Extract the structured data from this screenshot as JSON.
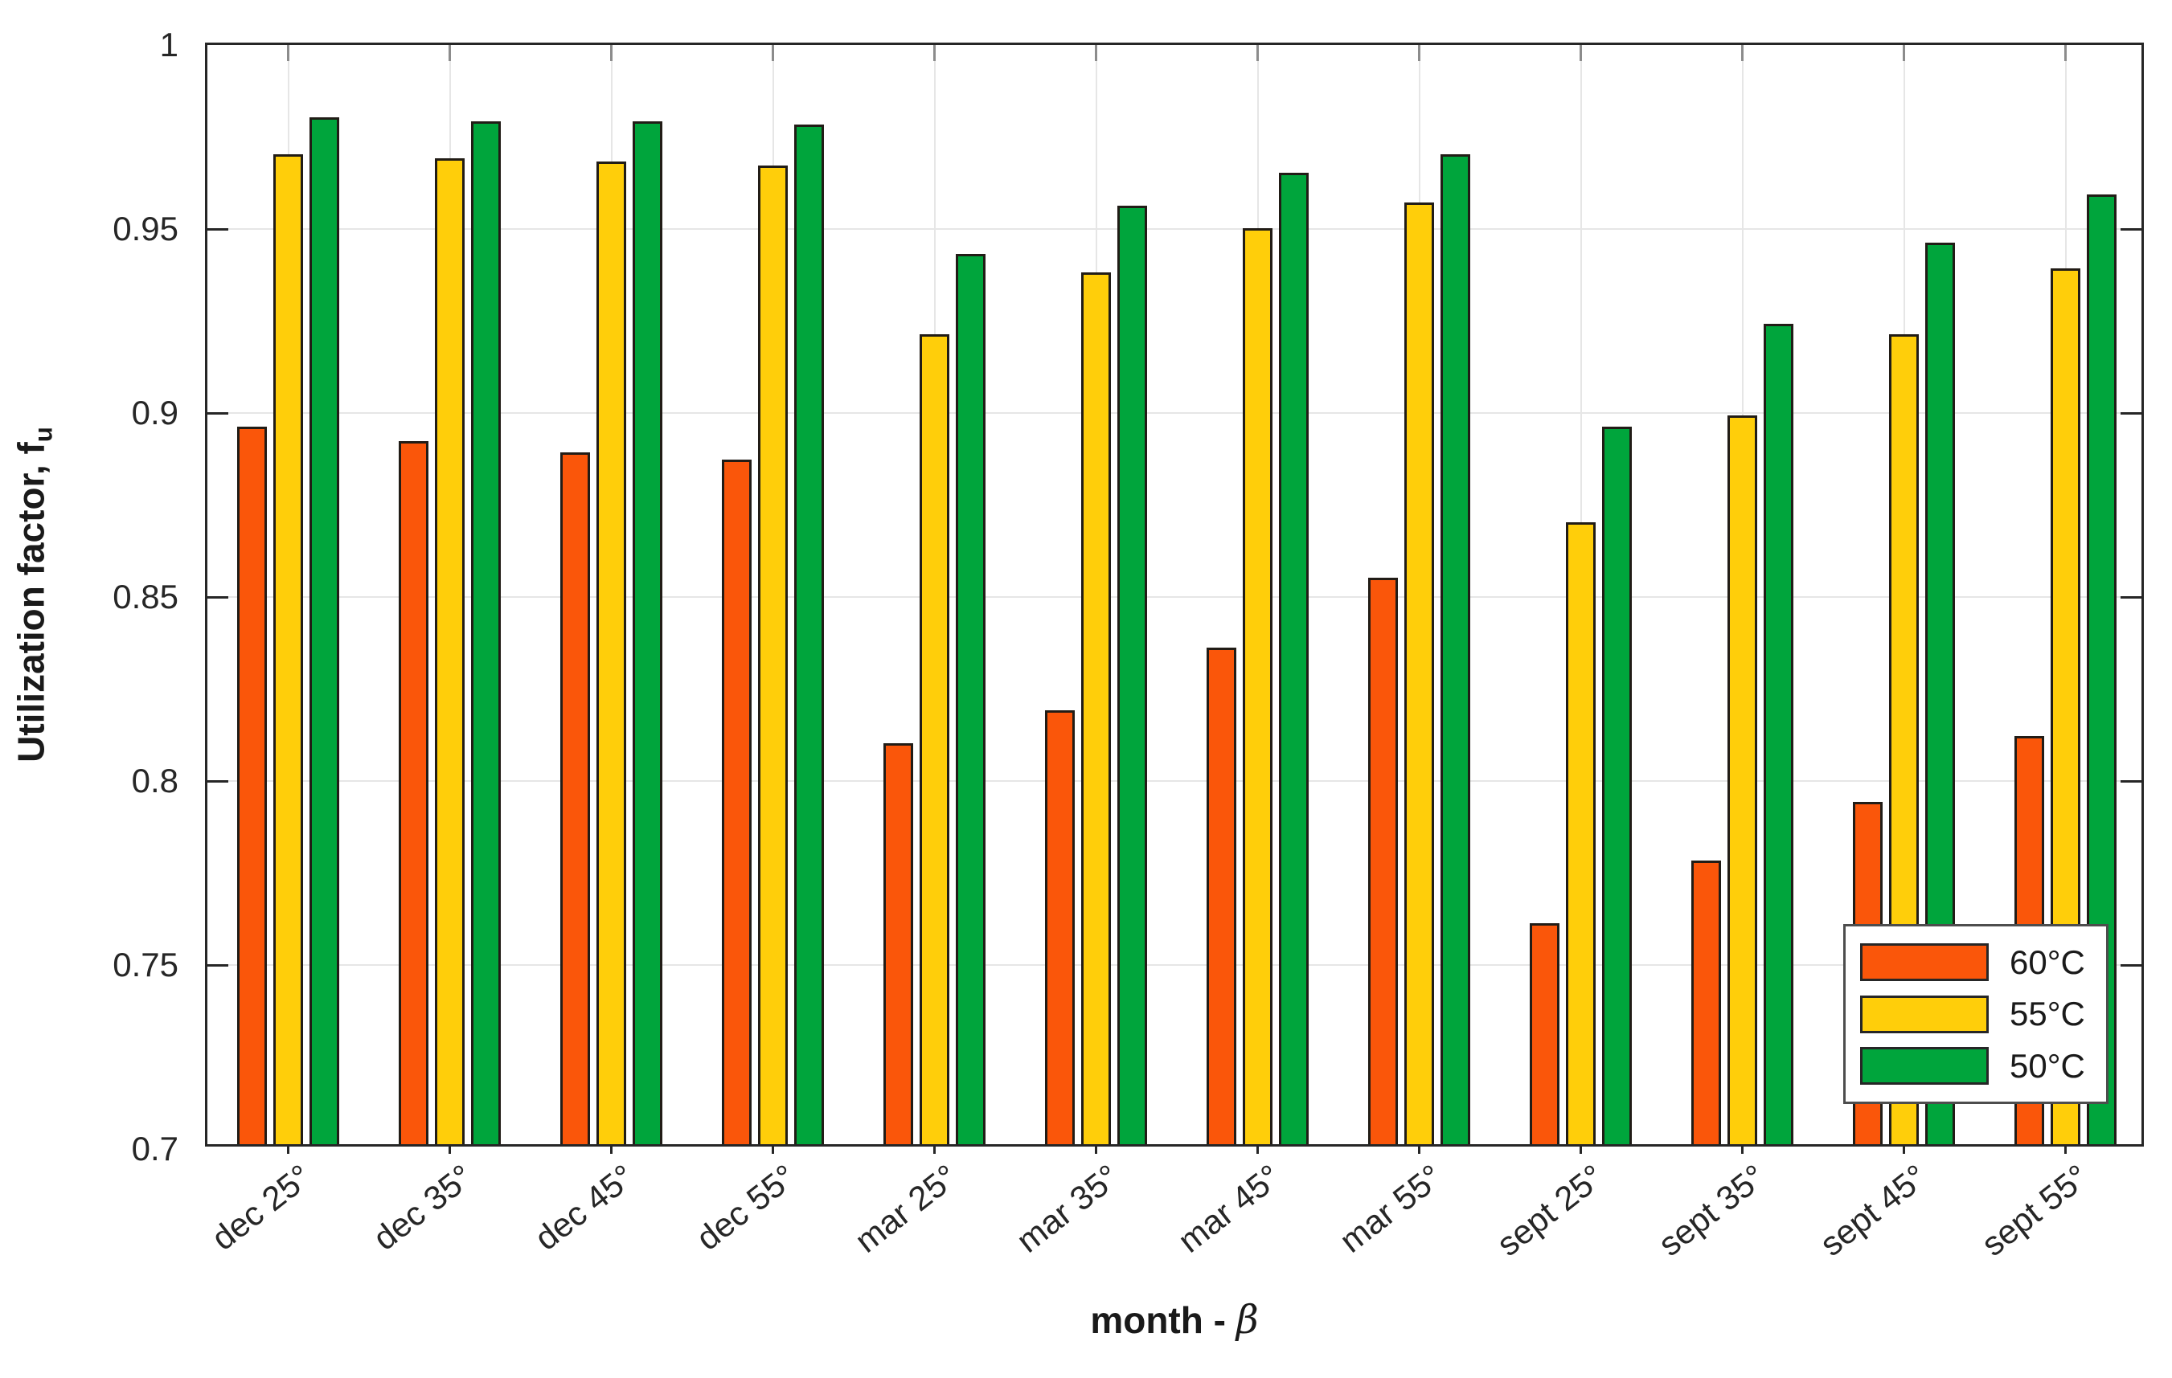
{
  "chart_data": {
    "type": "bar",
    "title": "",
    "xlabel_bold": "month - ",
    "xlabel_italic": "β",
    "ylabel": "Utilization factor, f",
    "ylabel_sub": "u",
    "ylim": [
      0.7,
      1.0
    ],
    "grid": "on",
    "legend_position": "bottom-right",
    "yticks": [
      {
        "v": 1.0,
        "label": "1"
      },
      {
        "v": 0.95,
        "label": "0.95"
      },
      {
        "v": 0.9,
        "label": "0.9"
      },
      {
        "v": 0.85,
        "label": "0.85"
      },
      {
        "v": 0.8,
        "label": "0.8"
      },
      {
        "v": 0.75,
        "label": "0.75"
      },
      {
        "v": 0.7,
        "label": "0.7"
      }
    ],
    "categories": [
      "dec 25°",
      "dec 35°",
      "dec 45°",
      "dec 55°",
      "mar 25°",
      "mar 35°",
      "mar 45°",
      "mar 55°",
      "sept 25°",
      "sept 35°",
      "sept 45°",
      "sept 55°"
    ],
    "series": [
      {
        "name": "60°C",
        "color": "#FA560A",
        "values": [
          0.895,
          0.891,
          0.888,
          0.886,
          0.809,
          0.818,
          0.835,
          0.854,
          0.76,
          0.777,
          0.793,
          0.811
        ]
      },
      {
        "name": "55°C",
        "color": "#FFCE0A",
        "values": [
          0.969,
          0.968,
          0.967,
          0.966,
          0.92,
          0.937,
          0.949,
          0.956,
          0.869,
          0.898,
          0.92,
          0.938
        ]
      },
      {
        "name": "50°C",
        "color": "#00A53C",
        "values": [
          0.979,
          0.978,
          0.978,
          0.977,
          0.942,
          0.955,
          0.964,
          0.969,
          0.895,
          0.923,
          0.945,
          0.958
        ]
      }
    ],
    "style": {
      "axis_color": "#262626",
      "grid_color": "#E6E6E6",
      "top_tick_color": "#8C8C8C",
      "bar_edge_color": "#211C16",
      "background": "#FFFFFF"
    }
  }
}
